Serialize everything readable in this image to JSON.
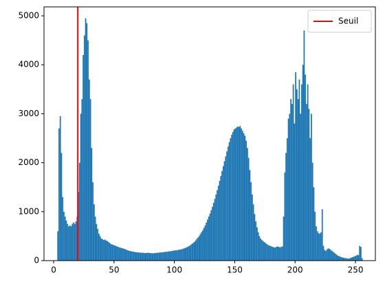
{
  "chart_data": {
    "type": "histogram",
    "bins": [
      0,
      1,
      2,
      3,
      4,
      5,
      6,
      7,
      8,
      9,
      10,
      11,
      12,
      13,
      14,
      15,
      16,
      17,
      18,
      19,
      20,
      21,
      22,
      23,
      24,
      25,
      26,
      27,
      28,
      29,
      30,
      31,
      32,
      33,
      34,
      35,
      36,
      37,
      38,
      39,
      40,
      41,
      42,
      43,
      44,
      45,
      46,
      47,
      48,
      49,
      50,
      51,
      52,
      53,
      54,
      55,
      56,
      57,
      58,
      59,
      60,
      61,
      62,
      63,
      64,
      65,
      66,
      67,
      68,
      69,
      70,
      71,
      72,
      73,
      74,
      75,
      76,
      77,
      78,
      79,
      80,
      81,
      82,
      83,
      84,
      85,
      86,
      87,
      88,
      89,
      90,
      91,
      92,
      93,
      94,
      95,
      96,
      97,
      98,
      99,
      100,
      101,
      102,
      103,
      104,
      105,
      106,
      107,
      108,
      109,
      110,
      111,
      112,
      113,
      114,
      115,
      116,
      117,
      118,
      119,
      120,
      121,
      122,
      123,
      124,
      125,
      126,
      127,
      128,
      129,
      130,
      131,
      132,
      133,
      134,
      135,
      136,
      137,
      138,
      139,
      140,
      141,
      142,
      143,
      144,
      145,
      146,
      147,
      148,
      149,
      150,
      151,
      152,
      153,
      154,
      155,
      156,
      157,
      158,
      159,
      160,
      161,
      162,
      163,
      164,
      165,
      166,
      167,
      168,
      169,
      170,
      171,
      172,
      173,
      174,
      175,
      176,
      177,
      178,
      179,
      180,
      181,
      182,
      183,
      184,
      185,
      186,
      187,
      188,
      189,
      190,
      191,
      192,
      193,
      194,
      195,
      196,
      197,
      198,
      199,
      200,
      201,
      202,
      203,
      204,
      205,
      206,
      207,
      208,
      209,
      210,
      211,
      212,
      213,
      214,
      215,
      216,
      217,
      218,
      219,
      220,
      221,
      222,
      223,
      224,
      225,
      226,
      227,
      228,
      229,
      230,
      231,
      232,
      233,
      234,
      235,
      236,
      237,
      238,
      239,
      240,
      241,
      242,
      243,
      244,
      245,
      246,
      247,
      248,
      249,
      250,
      251,
      252,
      253,
      254,
      255,
      256
    ],
    "values": [
      0,
      0,
      0,
      600,
      2700,
      2950,
      2200,
      1300,
      1000,
      900,
      820,
      750,
      700,
      720,
      700,
      750,
      780,
      750,
      800,
      900,
      1400,
      2000,
      3000,
      3300,
      4200,
      4600,
      4950,
      4850,
      4500,
      3700,
      3300,
      2300,
      1600,
      1150,
      900,
      750,
      650,
      550,
      500,
      450,
      440,
      420,
      430,
      410,
      400,
      380,
      360,
      340,
      330,
      320,
      310,
      300,
      290,
      280,
      270,
      265,
      255,
      250,
      240,
      230,
      220,
      210,
      200,
      195,
      190,
      185,
      180,
      175,
      170,
      170,
      165,
      165,
      160,
      160,
      160,
      155,
      155,
      160,
      160,
      155,
      155,
      150,
      150,
      155,
      155,
      160,
      160,
      165,
      165,
      170,
      170,
      175,
      180,
      180,
      185,
      190,
      190,
      195,
      200,
      205,
      210,
      210,
      215,
      220,
      225,
      230,
      235,
      245,
      255,
      265,
      275,
      290,
      300,
      320,
      340,
      360,
      380,
      410,
      440,
      470,
      500,
      540,
      580,
      620,
      670,
      720,
      780,
      840,
      900,
      960,
      1030,
      1100,
      1180,
      1260,
      1350,
      1440,
      1530,
      1630,
      1730,
      1830,
      1930,
      2030,
      2130,
      2230,
      2330,
      2420,
      2500,
      2570,
      2630,
      2680,
      2700,
      2720,
      2740,
      2730,
      2750,
      2700,
      2650,
      2600,
      2550,
      2450,
      2300,
      2100,
      1850,
      1600,
      1350,
      1150,
      950,
      800,
      680,
      580,
      500,
      450,
      420,
      400,
      380,
      360,
      340,
      320,
      310,
      300,
      290,
      280,
      270,
      270,
      280,
      290,
      280,
      270,
      280,
      290,
      900,
      1800,
      2200,
      2500,
      2900,
      3000,
      3300,
      3200,
      3600,
      2800,
      3850,
      3500,
      3300,
      3700,
      3000,
      3600,
      4000,
      4700,
      3800,
      3200,
      3600,
      3100,
      2500,
      3000,
      2000,
      1500,
      1000,
      700,
      600,
      560,
      550,
      580,
      1050,
      300,
      220,
      200,
      230,
      250,
      240,
      220,
      200,
      180,
      160,
      140,
      120,
      100,
      90,
      80,
      70,
      60,
      60,
      50,
      50,
      40,
      40,
      50,
      60,
      70,
      80,
      90,
      100,
      120,
      110,
      300,
      280,
      50
    ],
    "color": "#1f77b4",
    "vlines": [
      {
        "name": "Seuil",
        "x": 20,
        "color": "#ff0000"
      }
    ],
    "legend": "upper right",
    "xlim": [
      -8,
      266.5
    ],
    "ylim": [
      0,
      5183
    ],
    "xticks": [
      0,
      50,
      100,
      150,
      200,
      250
    ],
    "yticks": [
      0,
      1000,
      2000,
      3000,
      4000,
      5000
    ]
  }
}
